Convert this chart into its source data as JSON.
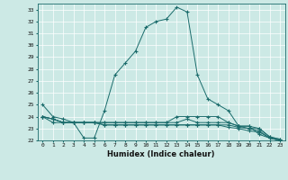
{
  "xlabel": "Humidex (Indice chaleur)",
  "ylabel": "",
  "xlim": [
    -0.5,
    23.5
  ],
  "ylim": [
    22,
    33.5
  ],
  "yticks": [
    22,
    23,
    24,
    25,
    26,
    27,
    28,
    29,
    30,
    31,
    32,
    33
  ],
  "xticks": [
    0,
    1,
    2,
    3,
    4,
    5,
    6,
    7,
    8,
    9,
    10,
    11,
    12,
    13,
    14,
    15,
    16,
    17,
    18,
    19,
    20,
    21,
    22,
    23
  ],
  "bg_color": "#cce9e5",
  "line_color": "#1a6b6b",
  "lines": [
    [
      25.0,
      24.0,
      23.8,
      23.5,
      22.2,
      22.2,
      24.5,
      27.5,
      28.5,
      29.5,
      31.5,
      32.0,
      32.2,
      33.2,
      32.8,
      27.5,
      25.5,
      25.0,
      24.5,
      23.2,
      23.2,
      22.5,
      22.2,
      22.0
    ],
    [
      24.0,
      23.5,
      23.5,
      23.5,
      23.5,
      23.5,
      23.5,
      23.5,
      23.5,
      23.5,
      23.5,
      23.5,
      23.5,
      24.0,
      24.0,
      24.0,
      24.0,
      24.0,
      23.5,
      23.2,
      23.2,
      23.0,
      22.3,
      22.1
    ],
    [
      24.0,
      23.8,
      23.5,
      23.5,
      23.5,
      23.5,
      23.5,
      23.5,
      23.5,
      23.5,
      23.5,
      23.5,
      23.5,
      23.5,
      23.8,
      23.5,
      23.5,
      23.5,
      23.5,
      23.2,
      23.0,
      23.0,
      22.3,
      22.1
    ],
    [
      24.0,
      23.8,
      23.5,
      23.5,
      23.5,
      23.5,
      23.3,
      23.3,
      23.3,
      23.3,
      23.3,
      23.3,
      23.3,
      23.3,
      23.3,
      23.3,
      23.3,
      23.3,
      23.3,
      23.1,
      23.0,
      22.8,
      22.2,
      22.0
    ],
    [
      24.0,
      23.8,
      23.5,
      23.5,
      23.5,
      23.5,
      23.3,
      23.3,
      23.3,
      23.3,
      23.3,
      23.3,
      23.3,
      23.3,
      23.3,
      23.3,
      23.3,
      23.3,
      23.1,
      23.0,
      22.8,
      22.7,
      22.2,
      22.0
    ]
  ]
}
